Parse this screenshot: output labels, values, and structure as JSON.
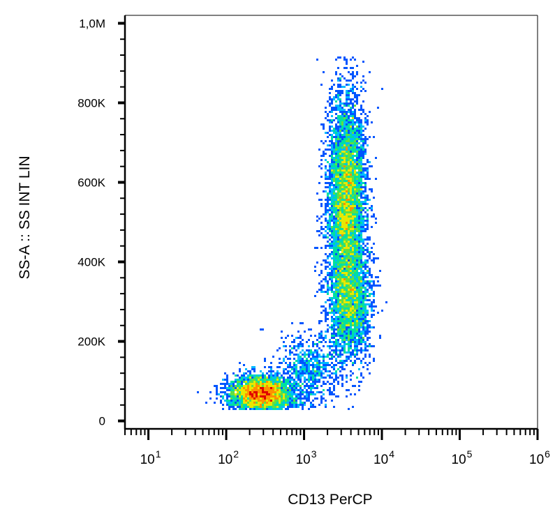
{
  "chart_data": {
    "type": "scatter",
    "subtype": "flow-cytometry-density-dot-plot",
    "xlabel": "CD13 PerCP",
    "ylabel": "SS-A :: SS INT LIN",
    "x_scale": "log",
    "xlim": [
      5,
      1000000
    ],
    "y_scale": "linear",
    "ylim": [
      -20000,
      1020000
    ],
    "x_ticks": [
      {
        "value": 10,
        "base": "10",
        "exp": "1"
      },
      {
        "value": 100,
        "base": "10",
        "exp": "2"
      },
      {
        "value": 1000,
        "base": "10",
        "exp": "3"
      },
      {
        "value": 10000,
        "base": "10",
        "exp": "4"
      },
      {
        "value": 100000,
        "base": "10",
        "exp": "5"
      },
      {
        "value": 1000000,
        "base": "10",
        "exp": "6"
      }
    ],
    "y_ticks": [
      {
        "value": 0,
        "label": "0"
      },
      {
        "value": 200000,
        "label": "200K"
      },
      {
        "value": 400000,
        "label": "400K"
      },
      {
        "value": 600000,
        "label": "600K"
      },
      {
        "value": 800000,
        "label": "800K"
      },
      {
        "value": 1000000,
        "label": "1,0M"
      }
    ],
    "grid": false,
    "legend": "none",
    "colormap": [
      "#0000cc",
      "#0055ff",
      "#00bbff",
      "#00e0a0",
      "#60e040",
      "#e8e800",
      "#ff9000",
      "#e00000"
    ],
    "populations": [
      {
        "x_center": 280,
        "y_center": 70000,
        "log_x_sd": 0.2,
        "y_sd": 22000,
        "events": 3300
      },
      {
        "x_center": 3500,
        "y_center": 560000,
        "log_x_sd": 0.12,
        "y_sd": 130000,
        "events": 5200
      },
      {
        "x_center": 3800,
        "y_center": 300000,
        "log_x_sd": 0.14,
        "y_sd": 75000,
        "events": 2300
      },
      {
        "x_center": 1200,
        "y_center": 130000,
        "log_x_sd": 0.22,
        "y_sd": 45000,
        "events": 700
      }
    ]
  }
}
